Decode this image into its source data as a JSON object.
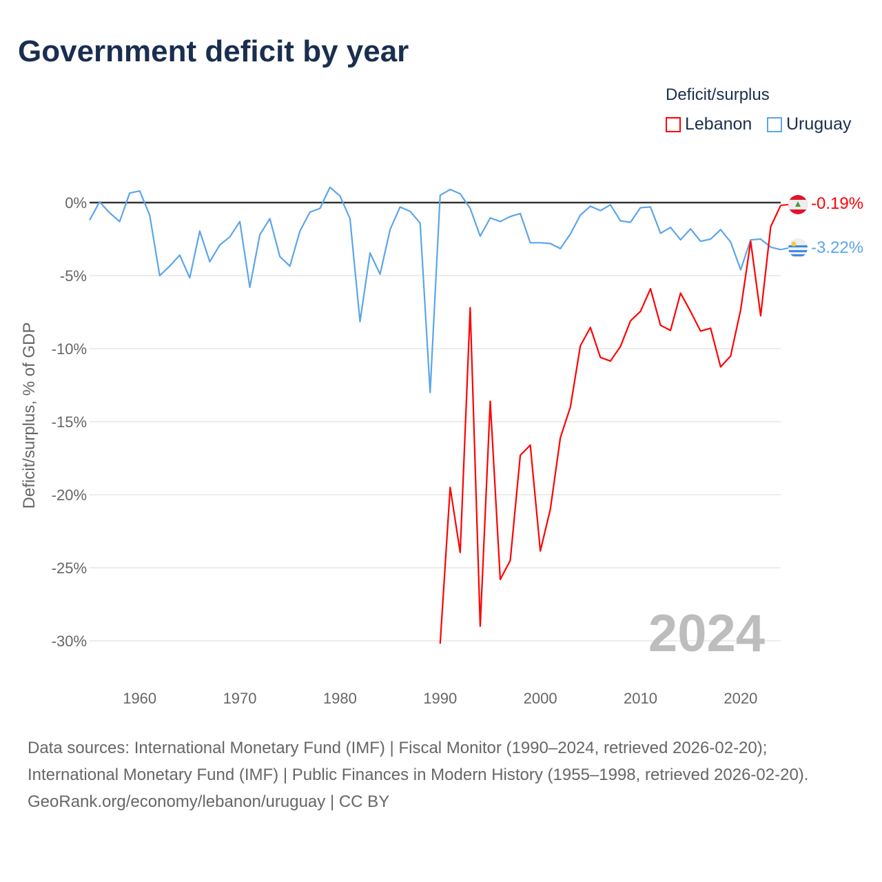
{
  "title": "Government deficit by year",
  "legend": {
    "title": "Deficit/surplus",
    "items": [
      {
        "label": "Lebanon",
        "color": "#ff0000"
      },
      {
        "label": "Uruguay",
        "color": "#5aa5ea"
      }
    ]
  },
  "watermark_year": "2024",
  "end_labels": {
    "lebanon": "-0.19%",
    "uruguay": "-3.22%"
  },
  "footer": {
    "sources": "Data sources: International Monetary Fund (IMF) | Fiscal Monitor (1990–2024, retrieved 2026-02-20); International Monetary Fund (IMF) | Public Finances in Modern History (1955–1998, retrieved 2026-02-20).",
    "credit": "GeoRank.org/economy/lebanon/uruguay | CC BY"
  },
  "chart_data": {
    "type": "line",
    "title": "Government deficit by year",
    "xlabel": "",
    "ylabel": "Deficit/surplus, % of GDP",
    "xlim": [
      1955,
      2024
    ],
    "ylim": [
      -32,
      1.5
    ],
    "x_ticks": [
      1960,
      1970,
      1980,
      1990,
      2000,
      2010,
      2020
    ],
    "x_tick_labels": [
      "1960",
      "1970",
      "1980",
      "1990",
      "2000",
      "2010",
      "2020"
    ],
    "y_ticks": [
      0,
      -5,
      -10,
      -15,
      -20,
      -25,
      -30
    ],
    "y_tick_labels": [
      "0%",
      "-5%",
      "-10%",
      "-15%",
      "-20%",
      "-25%",
      "-30%"
    ],
    "grid": true,
    "legend_position": "top-right",
    "series": [
      {
        "name": "Lebanon",
        "color": "#ff0000",
        "start_year": 1990,
        "values": [
          -30.2,
          -19.5,
          -23.95,
          -7.2,
          -29.0,
          -13.6,
          -25.8,
          -24.5,
          -17.3,
          -16.6,
          -23.85,
          -21.0,
          -16.1,
          -14.0,
          -9.8,
          -8.55,
          -10.6,
          -10.85,
          -9.85,
          -8.1,
          -7.45,
          -5.9,
          -8.4,
          -8.75,
          -6.2,
          -7.45,
          -8.8,
          -8.6,
          -11.25,
          -10.5,
          -7.35,
          -2.65,
          -7.75,
          -1.65,
          -0.19
        ]
      },
      {
        "name": "Uruguay",
        "color": "#5aa5ea",
        "start_year": 1955,
        "values": [
          -1.2,
          0.05,
          -0.7,
          -1.3,
          0.65,
          0.8,
          -0.85,
          -5.0,
          -4.35,
          -3.6,
          -5.15,
          -1.95,
          -4.05,
          -2.9,
          -2.35,
          -1.3,
          -5.8,
          -2.2,
          -1.1,
          -3.7,
          -4.35,
          -1.95,
          -0.65,
          -0.4,
          1.05,
          0.45,
          -1.1,
          -8.15,
          -3.45,
          -4.9,
          -1.85,
          -0.3,
          -0.6,
          -1.4,
          -13.0,
          0.5,
          0.9,
          0.6,
          -0.4,
          -2.3,
          -1.05,
          -1.3,
          -0.95,
          -0.75,
          -2.75,
          -2.75,
          -2.8,
          -3.15,
          -2.15,
          -0.85,
          -0.25,
          -0.55,
          -0.15,
          -1.25,
          -1.35,
          -0.35,
          -0.3,
          -2.1,
          -1.7,
          -2.55,
          -1.8,
          -2.65,
          -2.5,
          -1.85,
          -2.7,
          -4.6,
          -2.55,
          -2.5,
          -3.05,
          -3.22
        ]
      }
    ]
  }
}
